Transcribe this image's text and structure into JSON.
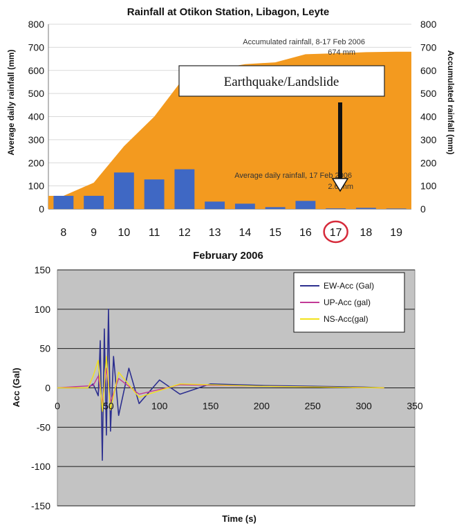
{
  "chart_data": [
    {
      "type": "bar",
      "title": "Rainfall at Otikon Station, Libagon, Leyte",
      "xlabel": "February 2006",
      "ylabel": "Average daily rainfall (mm)",
      "ylabel_right": "Accumulated rainfall (mm)",
      "categories": [
        "8",
        "9",
        "10",
        "11",
        "12",
        "13",
        "14",
        "15",
        "16",
        "17",
        "18",
        "19"
      ],
      "ylim": [
        0,
        800
      ],
      "yticks": [
        "0",
        "100",
        "200",
        "300",
        "400",
        "500",
        "600",
        "700",
        "800"
      ],
      "grid": true,
      "series": [
        {
          "kind": "bar",
          "color": "#3f68c4",
          "values": [
            57,
            57,
            158,
            128,
            172,
            32,
            23,
            8,
            35,
            2.6,
            5,
            2
          ]
        },
        {
          "kind": "area",
          "axis": "right",
          "color": "#f39a1f",
          "values": [
            57,
            114,
            272,
            400,
            572,
            604,
            627,
            635,
            670,
            674,
            679,
            681
          ]
        }
      ],
      "annotations": {
        "accumulated_line1": "Accumulated rainfall, 8-17 Feb 2006",
        "accumulated_line2": "674 mm",
        "daily_line1": "Average daily rainfall, 17 Feb 2006",
        "daily_line2": "2.6 mm",
        "event_label": "Earthquake/Landslide",
        "highlight_category": "17",
        "highlight_color": "#d62a3a"
      }
    },
    {
      "type": "line",
      "title": "",
      "xlabel": "Time (s)",
      "ylabel": "Acc (Gal)",
      "xlim": [
        0,
        350
      ],
      "ylim": [
        -150,
        150
      ],
      "xticks": [
        "0",
        "50",
        "100",
        "150",
        "200",
        "250",
        "300",
        "350"
      ],
      "yticks": [
        "-150",
        "-100",
        "-50",
        "0",
        "50",
        "100",
        "150"
      ],
      "grid": true,
      "legend_position": "top-right",
      "plot_background": "#c3c3c3",
      "series": [
        {
          "name": "EW-Acc (Gal)",
          "color": "#2c2f8f",
          "x": [
            0,
            30,
            35,
            40,
            42,
            44,
            46,
            48,
            50,
            52,
            55,
            60,
            70,
            80,
            100,
            120,
            150,
            200,
            250,
            300,
            320
          ],
          "y": [
            0,
            0,
            5,
            -10,
            60,
            -92,
            75,
            -60,
            100,
            -55,
            40,
            -35,
            25,
            -20,
            10,
            -8,
            5,
            3,
            2,
            1,
            0
          ]
        },
        {
          "name": "UP-Acc (gal)",
          "color": "#c23a96",
          "x": [
            0,
            35,
            40,
            44,
            48,
            52,
            60,
            80,
            120,
            200,
            320
          ],
          "y": [
            0,
            3,
            15,
            -20,
            25,
            -18,
            12,
            -8,
            4,
            2,
            0
          ]
        },
        {
          "name": "NS-Acc(gal)",
          "color": "#f2e21a",
          "x": [
            0,
            30,
            35,
            40,
            44,
            48,
            52,
            60,
            80,
            120,
            200,
            320
          ],
          "y": [
            0,
            0,
            15,
            35,
            -30,
            40,
            -28,
            20,
            -12,
            5,
            2,
            0
          ]
        }
      ]
    }
  ]
}
